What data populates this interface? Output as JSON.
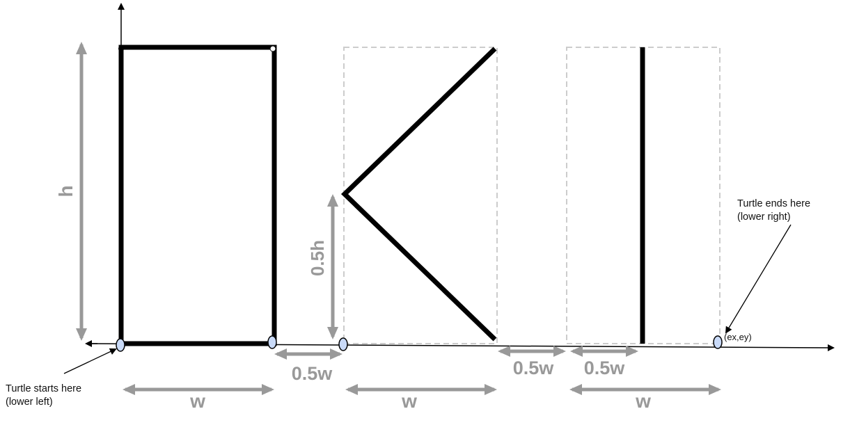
{
  "labels": {
    "h": "h",
    "half_h": "0.5h",
    "w": "w",
    "half_w": "0.5w"
  },
  "notes": {
    "start_line1": "Turtle starts here",
    "start_line2": "(lower left)",
    "end_line1": "Turtle ends here",
    "end_line2": "(lower right)",
    "end_coords": "(ex,ey)"
  },
  "colors": {
    "stroke": "#000000",
    "dimension": "#999999",
    "bounding_box": "#cccccc",
    "marker_fill": "#c9daf8"
  }
}
